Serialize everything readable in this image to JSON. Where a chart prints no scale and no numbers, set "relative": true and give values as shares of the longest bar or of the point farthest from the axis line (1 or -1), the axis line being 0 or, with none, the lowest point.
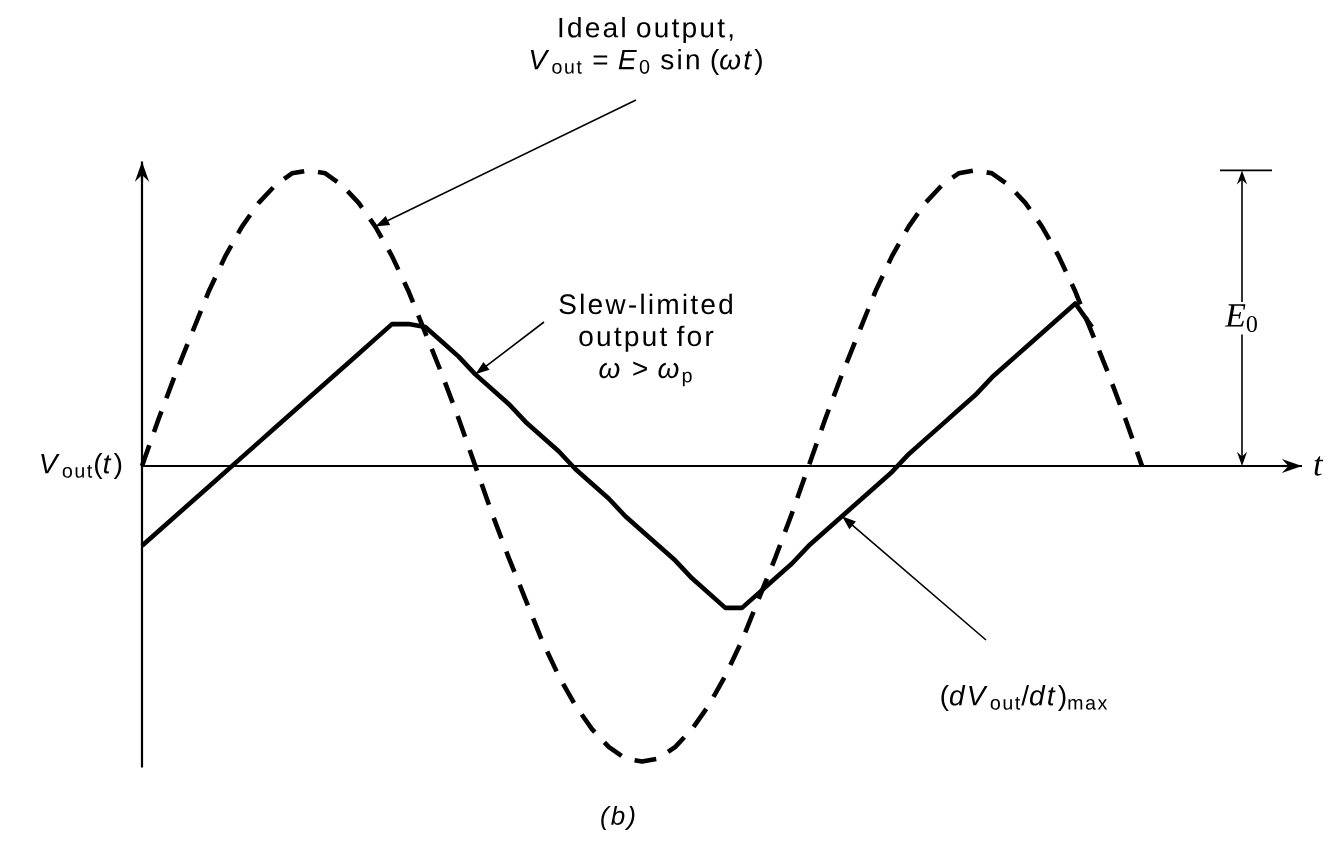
{
  "chart_data": {
    "type": "line",
    "relative": true,
    "categories": [
      null,
      null,
      null,
      null,
      null,
      null,
      null,
      null,
      null,
      null,
      null,
      null,
      null,
      null,
      null,
      null,
      null,
      null,
      null,
      null,
      null,
      null,
      null,
      null,
      null,
      null,
      null,
      null,
      null,
      null,
      null,
      null,
      null,
      null,
      null,
      null,
      null,
      null,
      null,
      null,
      null,
      null,
      null,
      null,
      null,
      null,
      null,
      null,
      null,
      null,
      null,
      null,
      null,
      null,
      null,
      null,
      null,
      null,
      null,
      null,
      null
    ],
    "xlabel": "t",
    "ylabel": "*V*$_{out}$(*t*)",
    "series": [
      {
        "color": "#000000",
        "line_style": "dashed",
        "values": [
          0,
          0.16,
          0.31,
          0.45,
          0.59,
          0.71,
          0.81,
          0.89,
          0.95,
          0.99,
          1,
          0.99,
          0.95,
          0.89,
          0.81,
          0.71,
          0.59,
          0.45,
          0.31,
          0.16,
          0,
          -0.16,
          -0.31,
          -0.45,
          -0.59,
          -0.71,
          -0.81,
          -0.89,
          -0.95,
          -0.99,
          -1,
          -0.99,
          -0.95,
          -0.89,
          -0.81,
          -0.71,
          -0.59,
          -0.45,
          -0.31,
          -0.16,
          0,
          0.16,
          0.31,
          0.45,
          0.59,
          0.71,
          0.81,
          0.89,
          0.95,
          0.99,
          1,
          0.99,
          0.95,
          0.89,
          0.81,
          0.71,
          0.59,
          0.45,
          0.31,
          0.16,
          0
        ]
      },
      {
        "color": "#000000",
        "line_style": "solid",
        "values": [
          -0.27,
          -0.22,
          -0.17,
          -0.12,
          -0.07,
          -0.02,
          0.03,
          0.08,
          0.13,
          0.18,
          0.23,
          0.28,
          0.33,
          0.38,
          0.43,
          0.48,
          0.48,
          0.47,
          0.42,
          0.37,
          0.31,
          0.26,
          0.21,
          0.15,
          0.1,
          0.05,
          -0.01,
          -0.06,
          -0.11,
          -0.17,
          -0.22,
          -0.27,
          -0.32,
          -0.38,
          -0.43,
          -0.48,
          -0.48,
          -0.43,
          -0.38,
          -0.33,
          -0.27,
          -0.22,
          -0.17,
          -0.12,
          -0.07,
          -0.02,
          0.04,
          0.09,
          0.14,
          0.19,
          0.24,
          0.3,
          0.35,
          0.4,
          0.45,
          0.5,
          0.55,
          0.47,
          null,
          null,
          null
        ]
      }
    ],
    "annotations": [
      "Ideal output, *V*$_{out}$ = *E*$_{0}$ sin (*ωt*)",
      "Slew-limited output for *ω* > *ω*$_{p}$",
      "*E*$_{0}$",
      "(*dV*$_{out}$/*dt*)$_{max}$",
      "(b)"
    ]
  }
}
